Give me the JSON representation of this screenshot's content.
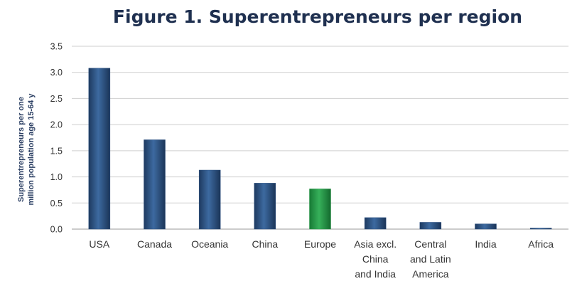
{
  "chart_data": {
    "type": "bar",
    "title": "Figure 1.  Superentrepreneurs per region",
    "ylabel_lines": [
      "Superentrepreneurs per one",
      "million  population age 15-64 y"
    ],
    "xlabel": "",
    "categories": [
      [
        "USA"
      ],
      [
        "Canada"
      ],
      [
        "Oceania"
      ],
      [
        "China"
      ],
      [
        "Europe"
      ],
      [
        "Asia excl.",
        "China",
        "and India"
      ],
      [
        "Central",
        "and Latin",
        "America"
      ],
      [
        "India"
      ],
      [
        "Africa"
      ]
    ],
    "values": [
      3.08,
      1.71,
      1.13,
      0.88,
      0.77,
      0.22,
      0.13,
      0.1,
      0.02
    ],
    "bar_colors": [
      "#2c5080",
      "#2c5080",
      "#2c5080",
      "#2c5080",
      "#2a9a4a",
      "#2c5080",
      "#2c5080",
      "#2c5080",
      "#2c5080"
    ],
    "yticks": [
      "0.0",
      "0.5",
      "1.0",
      "1.5",
      "2.0",
      "2.5",
      "3.0",
      "3.5"
    ],
    "ylim": [
      0,
      3.5
    ],
    "grid": true,
    "legend": "none"
  }
}
